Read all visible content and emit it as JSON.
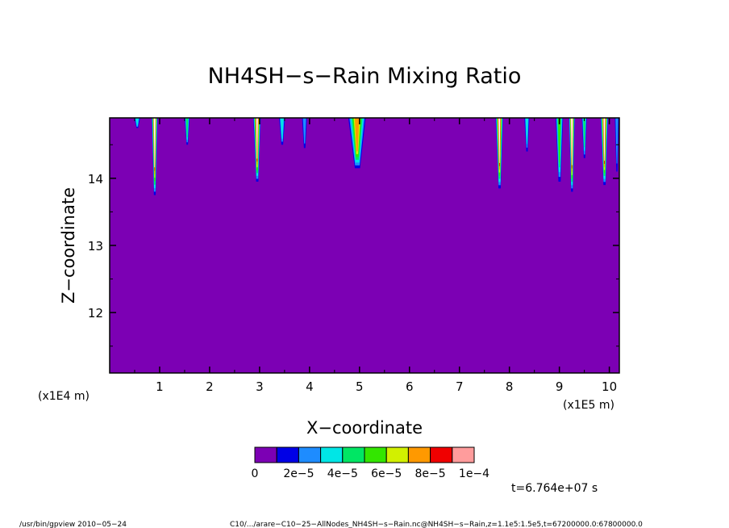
{
  "chart_data": {
    "type": "heatmap",
    "title": "NH4SH−s−Rain Mixing Ratio",
    "xlabel": "X−coordinate",
    "ylabel": "Z−coordinate",
    "x_unit_note": "(x1E5 m)",
    "y_unit_note": "(x1E4 m)",
    "x_ticks": [
      "1",
      "2",
      "3",
      "4",
      "5",
      "6",
      "7",
      "8",
      "9",
      "10"
    ],
    "y_ticks": [
      "12",
      "13",
      "14"
    ],
    "xlim": [
      0,
      10.2
    ],
    "ylim": [
      11.1,
      14.9
    ],
    "background_value": 0,
    "colorbar": {
      "labels": [
        "0",
        "2e−5",
        "4e−5",
        "6e−5",
        "8e−5",
        "1e−4"
      ],
      "colors": [
        "#7c00b4",
        "#0000e6",
        "#1e8cff",
        "#00e6e6",
        "#00e664",
        "#33e600",
        "#d2f000",
        "#ff9900",
        "#f00000",
        "#ff9c9c"
      ]
    },
    "plumes": [
      {
        "x": 0.55,
        "top": 14.9,
        "depth": 14.75,
        "width": 0.12,
        "max_level": 3
      },
      {
        "x": 0.9,
        "top": 14.9,
        "depth": 13.75,
        "width": 0.12,
        "max_level": 9
      },
      {
        "x": 1.55,
        "top": 14.9,
        "depth": 14.5,
        "width": 0.1,
        "max_level": 4
      },
      {
        "x": 2.95,
        "top": 14.9,
        "depth": 13.95,
        "width": 0.15,
        "max_level": 9
      },
      {
        "x": 3.45,
        "top": 14.9,
        "depth": 14.5,
        "width": 0.12,
        "max_level": 3
      },
      {
        "x": 3.9,
        "top": 14.9,
        "depth": 14.45,
        "width": 0.1,
        "max_level": 2
      },
      {
        "x": 4.95,
        "top": 14.9,
        "depth": 14.15,
        "width": 0.35,
        "max_level": 7
      },
      {
        "x": 7.8,
        "top": 14.9,
        "depth": 13.85,
        "width": 0.15,
        "max_level": 9
      },
      {
        "x": 8.35,
        "top": 14.9,
        "depth": 14.4,
        "width": 0.1,
        "max_level": 3
      },
      {
        "x": 9.0,
        "top": 14.9,
        "depth": 13.95,
        "width": 0.15,
        "max_level": 5
      },
      {
        "x": 9.25,
        "top": 14.9,
        "depth": 13.8,
        "width": 0.12,
        "max_level": 9
      },
      {
        "x": 9.5,
        "top": 14.9,
        "depth": 14.3,
        "width": 0.1,
        "max_level": 4
      },
      {
        "x": 9.9,
        "top": 14.9,
        "depth": 13.9,
        "width": 0.15,
        "max_level": 9
      },
      {
        "x": 10.15,
        "top": 14.9,
        "depth": 14.1,
        "width": 0.08,
        "max_level": 2
      }
    ]
  },
  "footer": {
    "time_label": "t=6.764e+07 s",
    "program": "/usr/bin/gpview  2010−05−24",
    "source": "C10/.../arare−C10−25−AllNodes_NH4SH−s−Rain.nc@NH4SH−s−Rain,z=1.1e5:1.5e5,t=67200000.0:67800000.0"
  }
}
